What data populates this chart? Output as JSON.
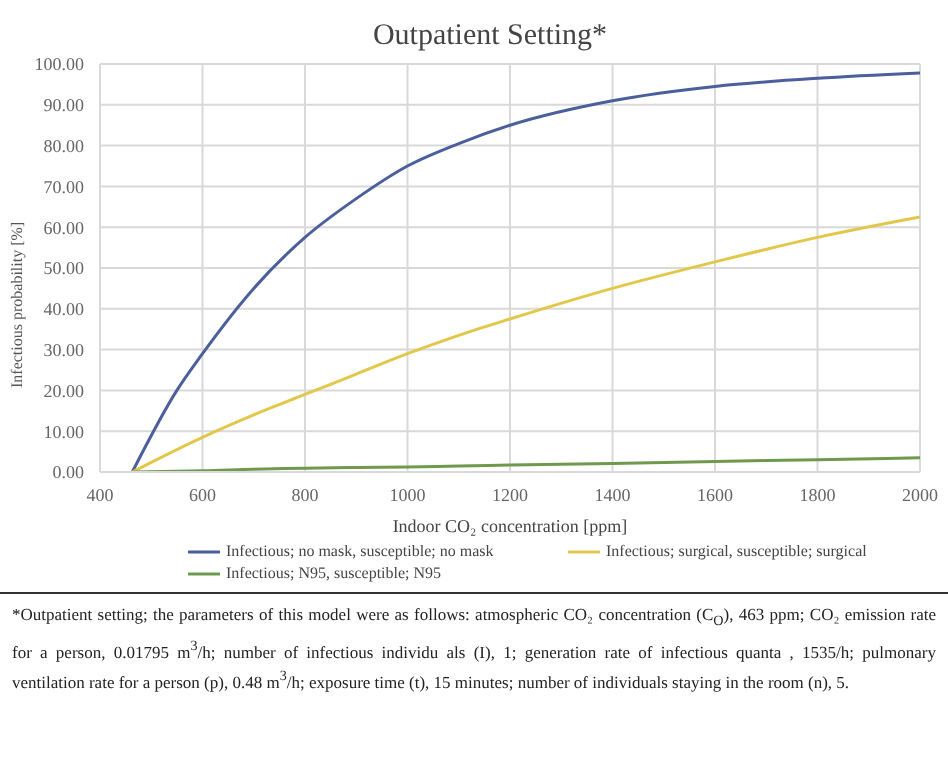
{
  "chart_data": {
    "type": "line",
    "title": "Outpatient Setting*",
    "xlabel": "Indoor CO₂ concentration [ppm]",
    "ylabel": "Infectious probability [%]",
    "x": [
      463,
      550,
      600,
      700,
      800,
      900,
      1000,
      1100,
      1200,
      1400,
      1600,
      1800,
      2000
    ],
    "series": [
      {
        "name": "Infectious; no mask, susceptible; no mask",
        "color": "#4a5f9c",
        "values": [
          0,
          20,
          29,
          45,
          57.5,
          67,
          75,
          80.5,
          85,
          91,
          94.5,
          96.5,
          97.8
        ]
      },
      {
        "name": "Infectious; surgical, susceptible; surgical",
        "color": "#e3c74a",
        "values": [
          0,
          5.5,
          8.5,
          14,
          19,
          24,
          29,
          33.5,
          37.5,
          45,
          51.5,
          57.5,
          62.5
        ]
      },
      {
        "name": "Infectious;  N95, susceptible; N95",
        "color": "#6f9a4e",
        "values": [
          0,
          0.2,
          0.3,
          0.7,
          0.9,
          1.1,
          1.2,
          1.5,
          1.7,
          2.1,
          2.6,
          3,
          3.5
        ]
      }
    ],
    "xlim": [
      400,
      2000
    ],
    "xticks": [
      400,
      600,
      800,
      1000,
      1200,
      1400,
      1600,
      1800,
      2000
    ],
    "ylim": [
      0,
      100
    ],
    "yticks": [
      {
        "value": 0,
        "label": "0.00"
      },
      {
        "value": 10,
        "label": "10.00"
      },
      {
        "value": 20,
        "label": "20.00"
      },
      {
        "value": 30,
        "label": "30.00"
      },
      {
        "value": 40,
        "label": "40.00"
      },
      {
        "value": 50,
        "label": "50.00"
      },
      {
        "value": 60,
        "label": "60.00"
      },
      {
        "value": 70,
        "label": "70.00"
      },
      {
        "value": 80,
        "label": "80.00"
      },
      {
        "value": 90,
        "label": "90.00"
      },
      {
        "value": 100,
        "label": "100.00"
      }
    ],
    "grid": true,
    "legend": "bottom",
    "marker": "none",
    "line_style": "solid",
    "annotations": [
      "*Outpatient setting; the parameters of this model were as follows: atmospheric CO₂ concentration (C$_{O}$), 463 ppm; CO₂ emission rate for a person, 0.01795 m$^{3}$/h; number of infectious individu als (I), 1; generation rate of infectious quanta , 1535/h; pulmonary ventilation rate for a person (p), 0.48 m$^{3}$/h; exposure time (t), 15 minutes;  number of individuals staying in the room (n), 5."
    ]
  }
}
